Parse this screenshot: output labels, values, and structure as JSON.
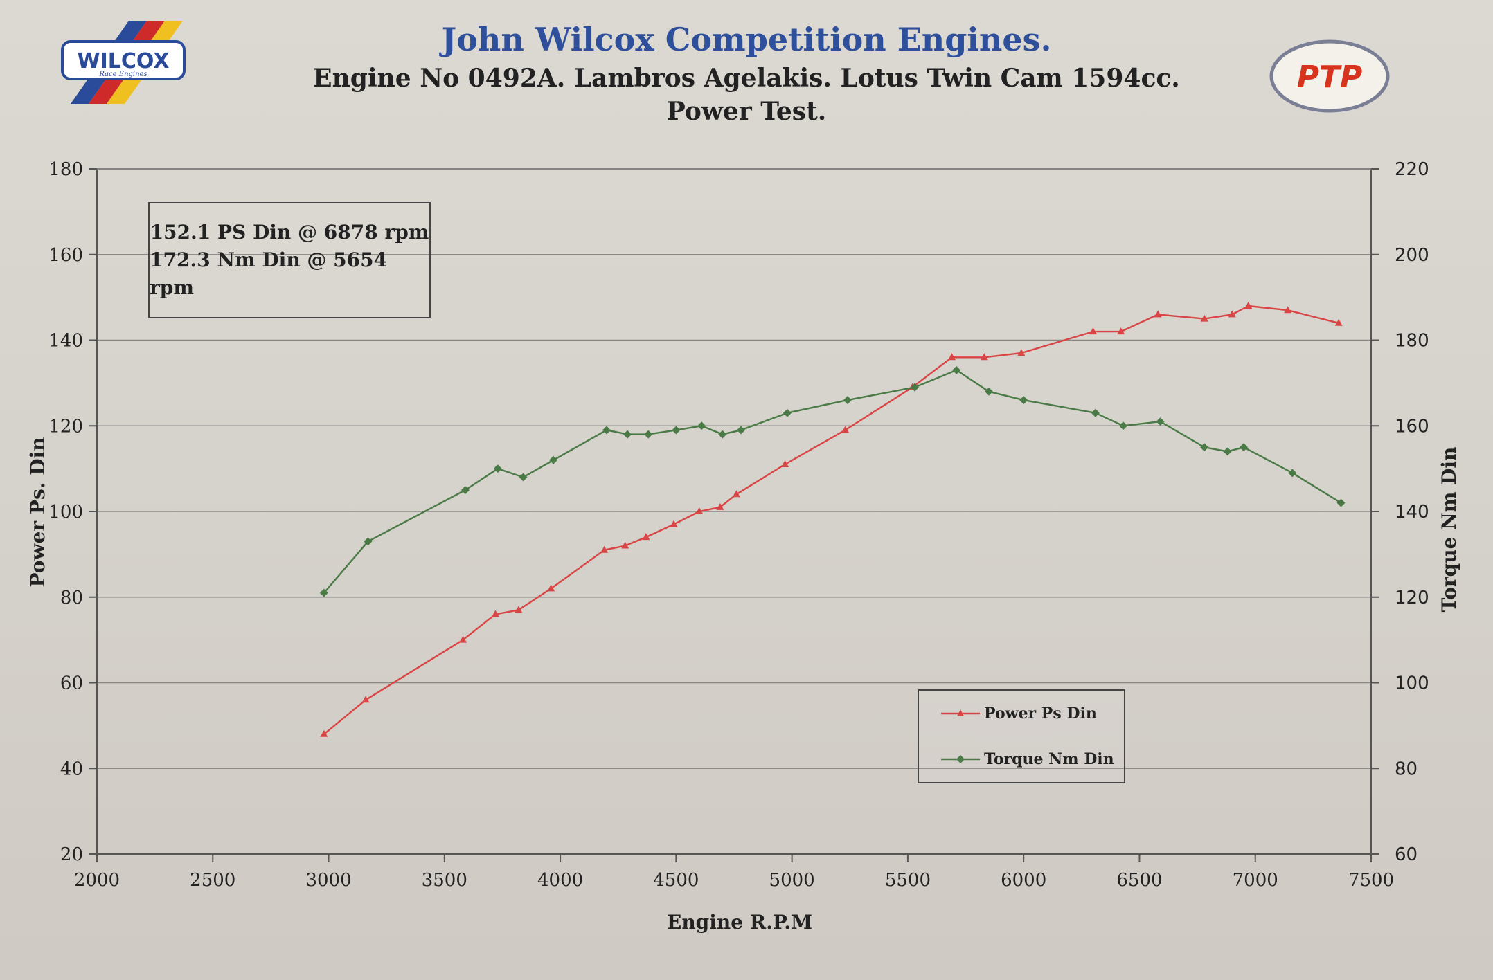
{
  "header": {
    "title": "John Wilcox Competition Engines.",
    "subtitle": "Engine No 0492A. Lambros Agelakis. Lotus Twin Cam 1594cc.",
    "test_name": "Power Test."
  },
  "logos": {
    "left": "WILCOX",
    "left_sub": "Race Engines",
    "right": "PTP"
  },
  "info_box": {
    "line1": "152.1 PS Din @ 6878 rpm",
    "line2": "172.3 Nm Din @ 5654 rpm"
  },
  "colors": {
    "power": "#d94545",
    "torque": "#4a7a46",
    "title": "#2e4f9c",
    "grid": "#8a8884"
  },
  "chart_data": {
    "type": "line",
    "xlabel": "Engine R.P.M",
    "ylabel_left": "Power Ps. Din",
    "ylabel_right": "Torque Nm Din",
    "xlim": [
      2000,
      7500
    ],
    "ylim_left": [
      20,
      180
    ],
    "ylim_right": [
      60,
      220
    ],
    "x_ticks": [
      2000,
      2500,
      3000,
      3500,
      4000,
      4500,
      5000,
      5500,
      6000,
      6500,
      7000,
      7500
    ],
    "y_left_ticks": [
      20,
      40,
      60,
      80,
      100,
      120,
      140,
      160,
      180
    ],
    "y_right_ticks": [
      60,
      80,
      100,
      120,
      140,
      160,
      180,
      200,
      220
    ],
    "grid": true,
    "legend_position": "bottom-right",
    "series": [
      {
        "name": "Power Ps Din",
        "axis": "left",
        "color": "#d94545",
        "marker": "triangle",
        "points": [
          [
            2980,
            48
          ],
          [
            3160,
            56
          ],
          [
            3580,
            70
          ],
          [
            3720,
            76
          ],
          [
            3820,
            77
          ],
          [
            3960,
            82
          ],
          [
            4190,
            91
          ],
          [
            4280,
            92
          ],
          [
            4370,
            94
          ],
          [
            4490,
            97
          ],
          [
            4600,
            100
          ],
          [
            4690,
            101
          ],
          [
            4760,
            104
          ],
          [
            4970,
            111
          ],
          [
            5230,
            119
          ],
          [
            5520,
            129
          ],
          [
            5690,
            136
          ],
          [
            5830,
            136
          ],
          [
            5990,
            137
          ],
          [
            6300,
            142
          ],
          [
            6420,
            142
          ],
          [
            6580,
            146
          ],
          [
            6780,
            145
          ],
          [
            6900,
            146
          ],
          [
            6970,
            148
          ],
          [
            7140,
            147
          ],
          [
            7360,
            144
          ]
        ]
      },
      {
        "name": "Torque Nm Din",
        "axis": "right",
        "color": "#4a7a46",
        "marker": "diamond",
        "points": [
          [
            2980,
            121
          ],
          [
            3170,
            133
          ],
          [
            3590,
            145
          ],
          [
            3730,
            150
          ],
          [
            3840,
            148
          ],
          [
            3970,
            152
          ],
          [
            4200,
            159
          ],
          [
            4290,
            158
          ],
          [
            4380,
            158
          ],
          [
            4500,
            159
          ],
          [
            4610,
            160
          ],
          [
            4700,
            158
          ],
          [
            4780,
            159
          ],
          [
            4980,
            163
          ],
          [
            5240,
            166
          ],
          [
            5530,
            169
          ],
          [
            5710,
            173
          ],
          [
            5850,
            168
          ],
          [
            6000,
            166
          ],
          [
            6310,
            163
          ],
          [
            6430,
            160
          ],
          [
            6590,
            161
          ],
          [
            6780,
            155
          ],
          [
            6880,
            154
          ],
          [
            6950,
            155
          ],
          [
            7160,
            149
          ],
          [
            7370,
            142
          ]
        ]
      }
    ]
  }
}
